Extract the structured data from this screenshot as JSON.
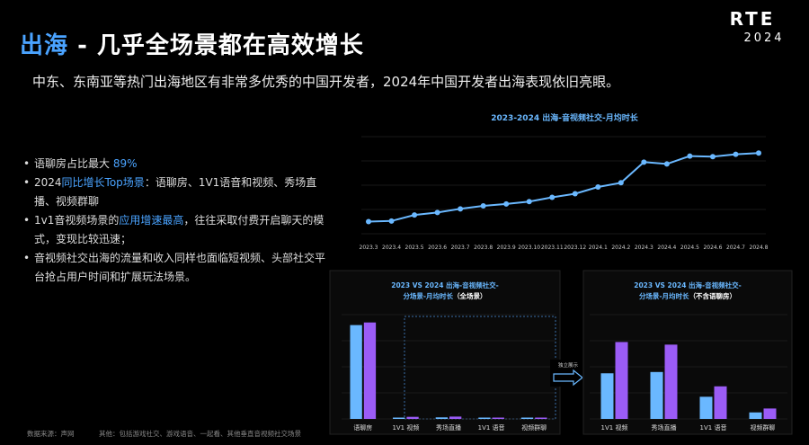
{
  "header": {
    "title_highlight": "出海",
    "title_rest": " - 几乎全场景都在高效增长",
    "subtitle": "中东、东南亚等热门出海地区有非常多优秀的中国开发者，2024年中国开发者出海表现依旧亮眼。"
  },
  "logo": {
    "line1": "RTE",
    "line2": "2024"
  },
  "bullets": [
    {
      "pre": "语聊房占比最大 ",
      "hl": "89%",
      "post": ""
    },
    {
      "pre": "2024",
      "hl": "同比增长Top场景",
      "post": "：语聊房、1V1语音和视频、秀场直播、视频群聊"
    },
    {
      "pre": "1v1音视频场景的",
      "hl": "应用增速最高",
      "post": "，往往采取付费开启聊天的模式，变现比较迅速；"
    },
    {
      "pre": "音视频社交出海的流量和收入同样也面临短视频、头部社交平台抢占用户时间和扩展玩法场景。",
      "hl": "",
      "post": ""
    }
  ],
  "footer": {
    "source": "数据来源：声网",
    "note": "其他：包括游戏社交、游戏语音、一起看、其他垂直音视频社交场景"
  },
  "arrow_label": "独立展示",
  "colors": {
    "blue": "#4aa3ff",
    "bar_blue": "#6ab8ff",
    "bar_purple": "#9b5cf6",
    "line": "#6ab8ff"
  },
  "chart_data": [
    {
      "type": "line",
      "title": "2023-2024 出海-音视频社交-月均时长",
      "x": [
        "2023.3",
        "2023.4",
        "2023.5",
        "2023.6",
        "2023.7",
        "2023.8",
        "2023.9",
        "2023.10",
        "2023.11",
        "2023.12",
        "2024.1",
        "2024.2",
        "2024.3",
        "2024.4",
        "2024.5",
        "2024.6",
        "2024.7",
        "2024.8"
      ],
      "series": [
        {
          "values": [
            1.0,
            1.05,
            1.55,
            1.75,
            2.05,
            2.3,
            2.45,
            2.65,
            3.0,
            3.3,
            3.85,
            4.2,
            5.9,
            5.75,
            6.4,
            6.35,
            6.55,
            6.65
          ]
        }
      ],
      "ylim": [
        0,
        8
      ],
      "grid": true
    },
    {
      "type": "bar",
      "title_line1": "2023 VS 2024 出海-音视频社交-",
      "title_line2": "分场景-月均时长",
      "title_suffix": "（全场景）",
      "categories": [
        "语聊房",
        "1V1 视频",
        "秀场直播",
        "1V1 语音",
        "视频群聊"
      ],
      "series": [
        {
          "values": [
            3.6,
            0.05,
            0.06,
            0.03,
            0.02
          ]
        },
        {
          "values": [
            3.7,
            0.08,
            0.09,
            0.04,
            0.03
          ]
        }
      ],
      "ylim": [
        0,
        4
      ],
      "grid": true
    },
    {
      "type": "bar",
      "title_line1": "2023 VS 2024 出海-音视频社交-",
      "title_line2": "分场景-月均时长",
      "title_suffix": "（不含语聊房）",
      "categories": [
        "1V1 视频",
        "秀场直播",
        "1V1 语音",
        "视频群聊"
      ],
      "series": [
        {
          "values": [
            1.75,
            1.8,
            0.85,
            0.25
          ]
        },
        {
          "values": [
            2.95,
            2.85,
            1.25,
            0.4
          ]
        }
      ],
      "ylim": [
        0,
        4
      ],
      "grid": true
    }
  ]
}
